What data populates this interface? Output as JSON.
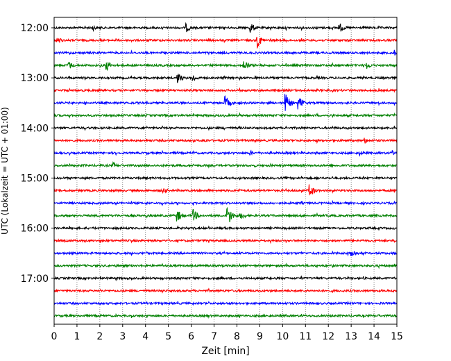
{
  "chart_data": {
    "type": "line",
    "title": "",
    "xlabel": "Zeit  [min]",
    "ylabel": "UTC (Lokalzeit = UTC + 01:00)",
    "xlim": [
      0,
      15
    ],
    "x_ticks": [
      0,
      1,
      2,
      3,
      4,
      5,
      6,
      7,
      8,
      9,
      10,
      11,
      12,
      13,
      14,
      15
    ],
    "y_ticks": [
      "12:00",
      "13:00",
      "14:00",
      "15:00",
      "16:00",
      "17:00"
    ],
    "grid": "vertical dotted",
    "colors": [
      "#000000",
      "#ff0000",
      "#0000ff",
      "#008000"
    ],
    "traces": [
      {
        "start": "12:00",
        "color": "#000000",
        "events": [
          {
            "t": 1.7,
            "a": 0.25
          },
          {
            "t": 5.8,
            "a": 0.35
          },
          {
            "t": 8.6,
            "a": 0.45
          },
          {
            "t": 12.5,
            "a": 0.4
          }
        ]
      },
      {
        "start": "12:15",
        "color": "#ff0000",
        "events": [
          {
            "t": 0.15,
            "a": 0.3
          },
          {
            "t": 8.9,
            "a": 0.6
          }
        ]
      },
      {
        "start": "12:30",
        "color": "#0000ff",
        "events": [
          {
            "t": 14.9,
            "a": 0.25
          }
        ]
      },
      {
        "start": "12:45",
        "color": "#008000",
        "events": [
          {
            "t": 0.65,
            "a": 0.35
          },
          {
            "t": 2.3,
            "a": 0.45
          },
          {
            "t": 8.3,
            "a": 0.5
          },
          {
            "t": 13.7,
            "a": 0.3
          }
        ]
      },
      {
        "start": "13:00",
        "color": "#000000",
        "events": [
          {
            "t": 5.4,
            "a": 0.45
          },
          {
            "t": 6.1,
            "a": 0.3
          }
        ]
      },
      {
        "start": "13:15",
        "color": "#ff0000",
        "events": []
      },
      {
        "start": "13:30",
        "color": "#0000ff",
        "events": [
          {
            "t": 7.5,
            "a": 0.55
          },
          {
            "t": 10.1,
            "a": 0.85
          },
          {
            "t": 10.7,
            "a": 0.55
          }
        ]
      },
      {
        "start": "13:45",
        "color": "#008000",
        "events": []
      },
      {
        "start": "14:00",
        "color": "#000000",
        "events": []
      },
      {
        "start": "14:15",
        "color": "#ff0000",
        "events": [
          {
            "t": 6.6,
            "a": 0.2
          },
          {
            "t": 13.6,
            "a": 0.25
          }
        ]
      },
      {
        "start": "14:30",
        "color": "#0000ff",
        "events": [
          {
            "t": 8.6,
            "a": 0.2
          },
          {
            "t": 13.4,
            "a": 0.2
          },
          {
            "t": 14.8,
            "a": 0.25
          }
        ]
      },
      {
        "start": "14:45",
        "color": "#008000",
        "events": [
          {
            "t": 2.6,
            "a": 0.25
          }
        ]
      },
      {
        "start": "15:00",
        "color": "#000000",
        "events": []
      },
      {
        "start": "15:15",
        "color": "#ff0000",
        "events": [
          {
            "t": 4.8,
            "a": 0.25
          },
          {
            "t": 11.2,
            "a": 0.55
          }
        ]
      },
      {
        "start": "15:30",
        "color": "#0000ff",
        "events": []
      },
      {
        "start": "15:45",
        "color": "#008000",
        "events": [
          {
            "t": 5.4,
            "a": 0.5
          },
          {
            "t": 6.1,
            "a": 0.5
          },
          {
            "t": 7.6,
            "a": 0.85
          },
          {
            "t": 8.2,
            "a": 0.3
          }
        ]
      },
      {
        "start": "16:00",
        "color": "#000000",
        "events": []
      },
      {
        "start": "16:15",
        "color": "#ff0000",
        "events": []
      },
      {
        "start": "16:30",
        "color": "#0000ff",
        "events": [
          {
            "t": 13.0,
            "a": 0.45
          }
        ]
      },
      {
        "start": "16:45",
        "color": "#008000",
        "events": []
      },
      {
        "start": "17:00",
        "color": "#000000",
        "events": []
      },
      {
        "start": "17:15",
        "color": "#ff0000",
        "events": []
      },
      {
        "start": "17:30",
        "color": "#0000ff",
        "events": []
      },
      {
        "start": "17:45",
        "color": "#008000",
        "events": []
      }
    ]
  }
}
